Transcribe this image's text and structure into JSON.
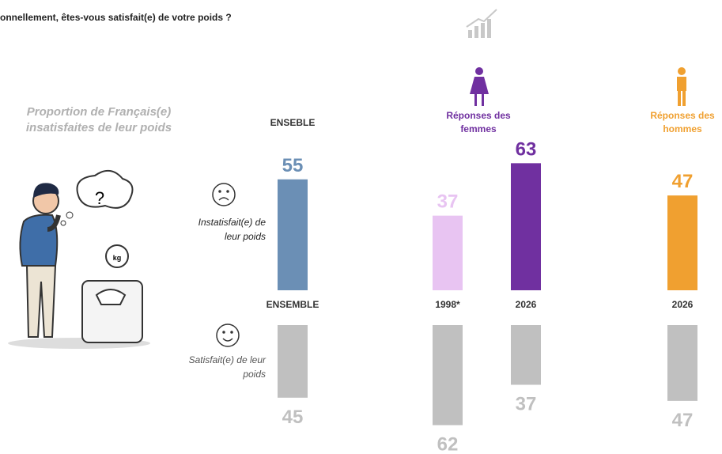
{
  "chart_data": {
    "type": "bar",
    "title": "onnellement, êtes-vous satisfait(e) de votre poids ?",
    "subtitle": "Proportion de Français(e) insatisfaites de leur poids",
    "groups": [
      "ENSEBLE",
      "Réponses des femmes",
      "Réponses des hommes"
    ],
    "categories": [
      "ENSEMBLE",
      "1998*",
      "2026",
      "2026"
    ],
    "series": [
      {
        "name": "Instatisfait(e) de leur poids",
        "colors": [
          "#6b8fb5",
          "#e8c4f2",
          "#7030a0",
          "#f0a030"
        ],
        "values": [
          55,
          37,
          63,
          47
        ]
      },
      {
        "name": "Satisfait(e) de leur poids",
        "color": "#c0c0c0",
        "values": [
          45,
          62,
          37,
          47
        ]
      }
    ]
  }
}
